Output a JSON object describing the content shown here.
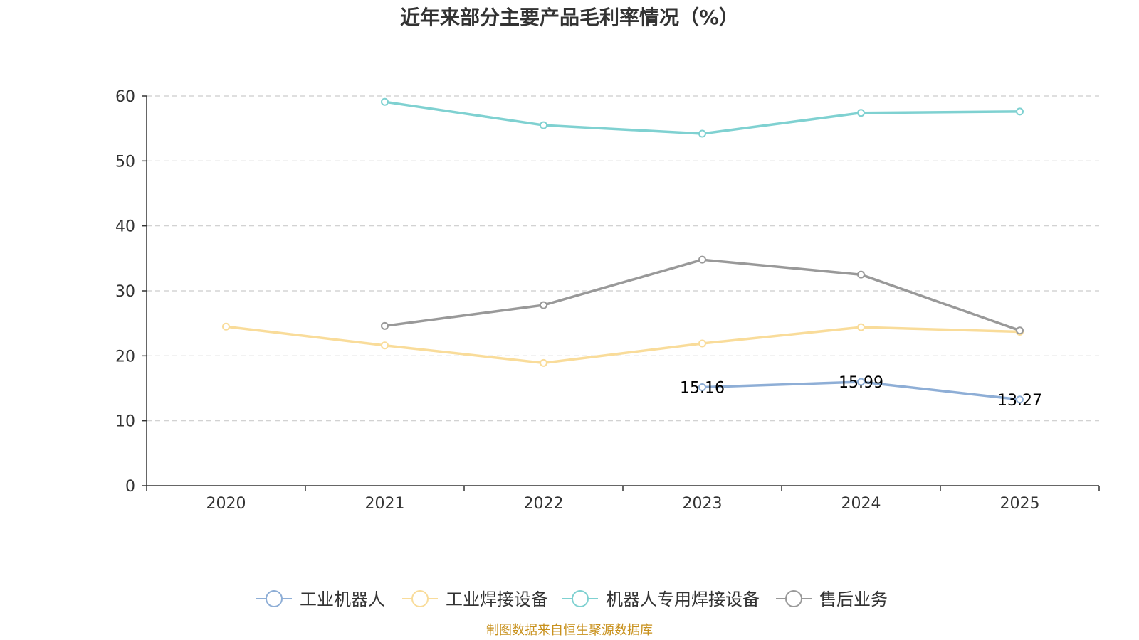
{
  "chart_data": {
    "type": "line",
    "title": "近年来部分主要产品毛利率情况（%）",
    "categories": [
      "2020",
      "2021",
      "2022",
      "2023",
      "2024",
      "2025"
    ],
    "ylim": [
      0,
      60
    ],
    "yticks": [
      0,
      10,
      20,
      30,
      40,
      50,
      60
    ],
    "grid": true,
    "legend_position": "bottom",
    "series": [
      {
        "name": "工业机器人",
        "color": "#8eaed6",
        "values": [
          null,
          null,
          null,
          15.16,
          15.99,
          13.27
        ],
        "show_labels": true
      },
      {
        "name": "工业焊接设备",
        "color": "#f9dc9a",
        "values": [
          24.5,
          21.6,
          18.9,
          21.9,
          24.4,
          23.7
        ],
        "show_labels": false
      },
      {
        "name": "机器人专用焊接设备",
        "color": "#7fd1d1",
        "values": [
          null,
          59.1,
          55.5,
          54.2,
          57.4,
          57.6
        ],
        "show_labels": false
      },
      {
        "name": "售后业务",
        "color": "#999999",
        "values": [
          null,
          24.6,
          27.8,
          34.8,
          32.5,
          23.9
        ],
        "show_labels": false
      }
    ]
  },
  "source_text": "制图数据来自恒生聚源数据库"
}
